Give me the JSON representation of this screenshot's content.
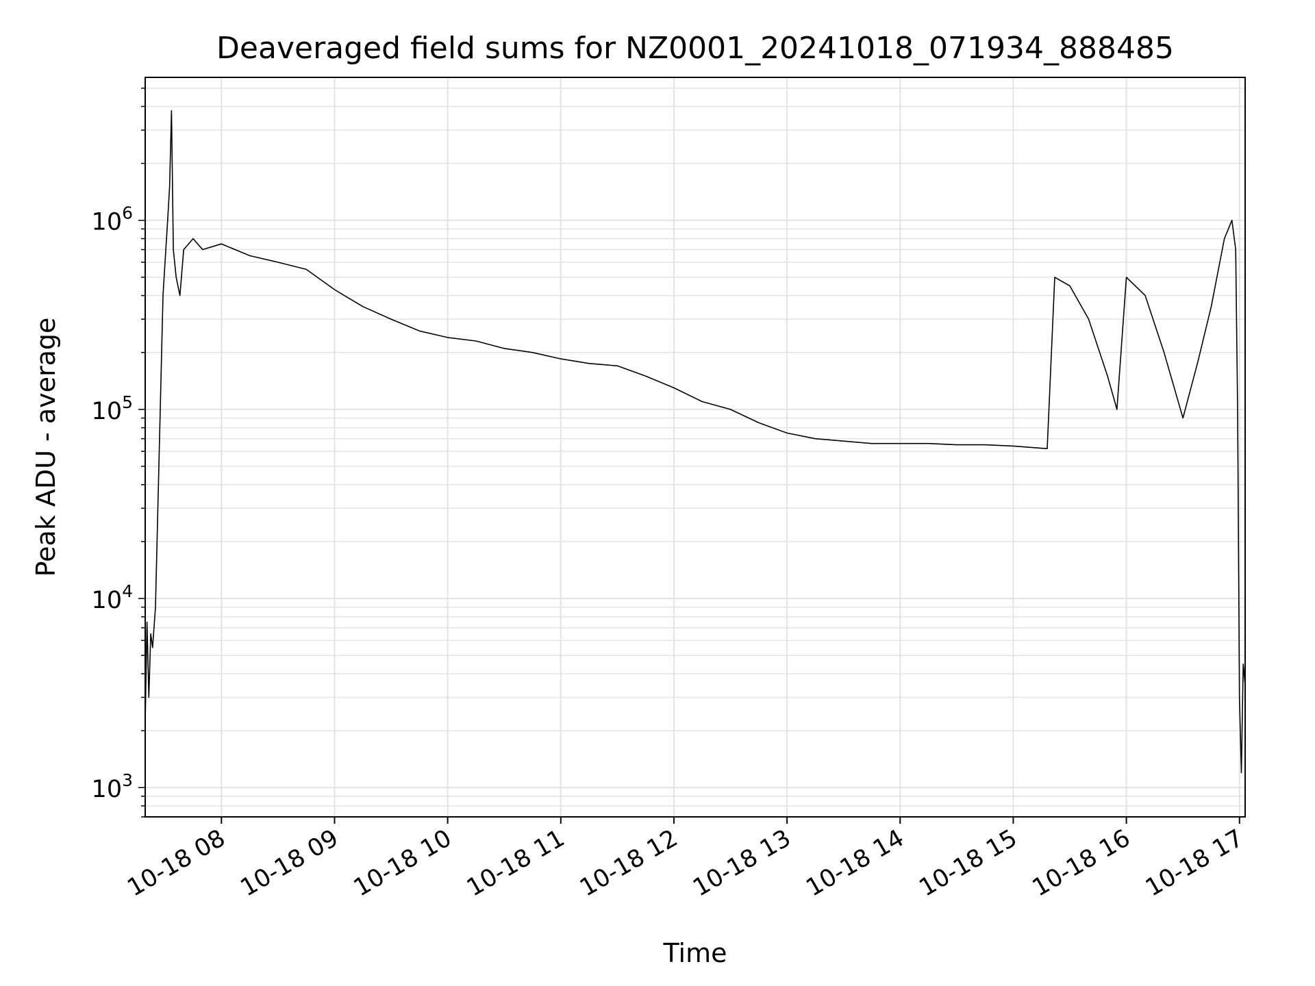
{
  "chart_data": {
    "type": "line",
    "title": "Deaveraged field sums for NZ0001_20241018_071934_888485",
    "xlabel": "Time",
    "ylabel": "Peak ADU - average",
    "x_range": [
      "10-18 07:19:34",
      "10-18 17:03:00"
    ],
    "y_scale": "log",
    "ylim": [
      700,
      5700000
    ],
    "grid": true,
    "legend": false,
    "line_color": "#000000",
    "grid_color": "#e3e3e3",
    "x_ticks": [
      {
        "time": "10-18 08:00",
        "label": "10-18 08"
      },
      {
        "time": "10-18 09:00",
        "label": "10-18 09"
      },
      {
        "time": "10-18 10:00",
        "label": "10-18 10"
      },
      {
        "time": "10-18 11:00",
        "label": "10-18 11"
      },
      {
        "time": "10-18 12:00",
        "label": "10-18 12"
      },
      {
        "time": "10-18 13:00",
        "label": "10-18 13"
      },
      {
        "time": "10-18 14:00",
        "label": "10-18 14"
      },
      {
        "time": "10-18 15:00",
        "label": "10-18 15"
      },
      {
        "time": "10-18 16:00",
        "label": "10-18 16"
      },
      {
        "time": "10-18 17:00",
        "label": "10-18 17"
      }
    ],
    "y_ticks": [
      {
        "value": 1000,
        "base": "10",
        "exp": "3"
      },
      {
        "value": 10000,
        "base": "10",
        "exp": "4"
      },
      {
        "value": 100000,
        "base": "10",
        "exp": "5"
      },
      {
        "value": 1000000,
        "base": "10",
        "exp": "6"
      }
    ],
    "series": [
      {
        "points": [
          [
            "10-18 07:19:34",
            2200
          ],
          [
            "10-18 07:20:30",
            7500
          ],
          [
            "10-18 07:21:30",
            3000
          ],
          [
            "10-18 07:22:30",
            6500
          ],
          [
            "10-18 07:23:30",
            5500
          ],
          [
            "10-18 07:25:00",
            9000
          ],
          [
            "10-18 07:27:00",
            60000
          ],
          [
            "10-18 07:29:00",
            400000
          ],
          [
            "10-18 07:30:30",
            700000
          ],
          [
            "10-18 07:31:30",
            1000000
          ],
          [
            "10-18 07:32:30",
            1500000
          ],
          [
            "10-18 07:33:30",
            3800000
          ],
          [
            "10-18 07:34:30",
            700000
          ],
          [
            "10-18 07:36:00",
            500000
          ],
          [
            "10-18 07:38:00",
            400000
          ],
          [
            "10-18 07:40:00",
            700000
          ],
          [
            "10-18 07:45:00",
            800000
          ],
          [
            "10-18 07:50:00",
            700000
          ],
          [
            "10-18 08:00:00",
            750000
          ],
          [
            "10-18 08:15:00",
            650000
          ],
          [
            "10-18 08:30:00",
            600000
          ],
          [
            "10-18 08:45:00",
            550000
          ],
          [
            "10-18 09:00:00",
            430000
          ],
          [
            "10-18 09:15:00",
            350000
          ],
          [
            "10-18 09:30:00",
            300000
          ],
          [
            "10-18 09:45:00",
            260000
          ],
          [
            "10-18 10:00:00",
            240000
          ],
          [
            "10-18 10:15:00",
            230000
          ],
          [
            "10-18 10:30:00",
            210000
          ],
          [
            "10-18 10:45:00",
            200000
          ],
          [
            "10-18 11:00:00",
            185000
          ],
          [
            "10-18 11:15:00",
            175000
          ],
          [
            "10-18 11:30:00",
            170000
          ],
          [
            "10-18 11:45:00",
            150000
          ],
          [
            "10-18 12:00:00",
            130000
          ],
          [
            "10-18 12:15:00",
            110000
          ],
          [
            "10-18 12:30:00",
            100000
          ],
          [
            "10-18 12:45:00",
            85000
          ],
          [
            "10-18 13:00:00",
            75000
          ],
          [
            "10-18 13:15:00",
            70000
          ],
          [
            "10-18 13:30:00",
            68000
          ],
          [
            "10-18 13:45:00",
            66000
          ],
          [
            "10-18 14:00:00",
            66000
          ],
          [
            "10-18 14:15:00",
            66000
          ],
          [
            "10-18 14:30:00",
            65000
          ],
          [
            "10-18 14:45:00",
            65000
          ],
          [
            "10-18 15:00:00",
            64000
          ],
          [
            "10-18 15:18:00",
            62000
          ],
          [
            "10-18 15:22:00",
            500000
          ],
          [
            "10-18 15:30:00",
            450000
          ],
          [
            "10-18 15:40:00",
            300000
          ],
          [
            "10-18 15:50:00",
            150000
          ],
          [
            "10-18 15:55:00",
            100000
          ],
          [
            "10-18 16:00:00",
            500000
          ],
          [
            "10-18 16:10:00",
            400000
          ],
          [
            "10-18 16:20:00",
            200000
          ],
          [
            "10-18 16:30:00",
            90000
          ],
          [
            "10-18 16:38:00",
            180000
          ],
          [
            "10-18 16:45:00",
            350000
          ],
          [
            "10-18 16:52:00",
            800000
          ],
          [
            "10-18 16:56:00",
            1000000
          ],
          [
            "10-18 16:58:00",
            700000
          ],
          [
            "10-18 16:59:00",
            100000
          ],
          [
            "10-18 17:00:00",
            3000
          ],
          [
            "10-18 17:01:00",
            1200
          ],
          [
            "10-18 17:02:00",
            4500
          ],
          [
            "10-18 17:03:00",
            3500
          ]
        ]
      }
    ]
  }
}
